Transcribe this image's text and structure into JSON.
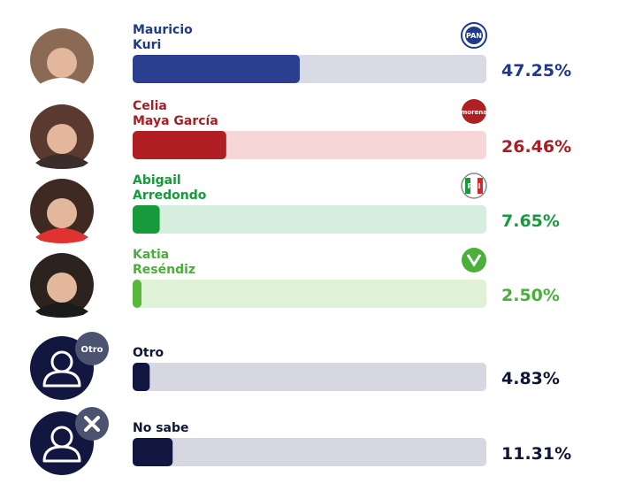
{
  "chart_data": {
    "type": "bar",
    "orientation": "horizontal",
    "xlim": [
      0,
      100
    ],
    "items": [
      {
        "name_lines": [
          "Mauricio",
          "Kuri"
        ],
        "value": 47.25,
        "value_label": "47.25%",
        "party": "PAN",
        "party_icon": "pan-logo-icon",
        "color": "#2a3f8f",
        "track_color": "#d8dbe6",
        "text_color": "#1f3a8a",
        "avatar": "candidate-photo"
      },
      {
        "name_lines": [
          "Celia",
          "Maya García"
        ],
        "value": 26.46,
        "value_label": "26.46%",
        "party": "morena",
        "party_icon": "morena-logo-icon",
        "color": "#b01f24",
        "track_color": "#f6d6d6",
        "text_color": "#a81e23",
        "avatar": "candidate-photo"
      },
      {
        "name_lines": [
          "Abigail",
          "Arredondo"
        ],
        "value": 7.65,
        "value_label": "7.65%",
        "party": "PRI",
        "party_icon": "pri-logo-icon",
        "color": "#179a3c",
        "track_color": "#d5eedd",
        "text_color": "#179a3c",
        "avatar": "candidate-photo"
      },
      {
        "name_lines": [
          "Katia",
          "Reséndiz"
        ],
        "value": 2.5,
        "value_label": "2.50%",
        "party": "VERDE",
        "party_icon": "verde-logo-icon",
        "color": "#59b73c",
        "track_color": "#dff2d8",
        "text_color": "#4aae3a",
        "avatar": "candidate-photo"
      },
      {
        "name_lines": [
          "Otro"
        ],
        "value": 4.83,
        "value_label": "4.83%",
        "badge": "Otro",
        "color": "#10163f",
        "track_color": "#d6d7e0",
        "text_color": "#0f1638",
        "avatar": "generic-person-icon"
      },
      {
        "name_lines": [
          "No sabe"
        ],
        "value": 11.31,
        "value_label": "11.31%",
        "badge": "x",
        "color": "#10163f",
        "track_color": "#d6d7e0",
        "text_color": "#0f1638",
        "avatar": "generic-person-icon"
      }
    ]
  }
}
